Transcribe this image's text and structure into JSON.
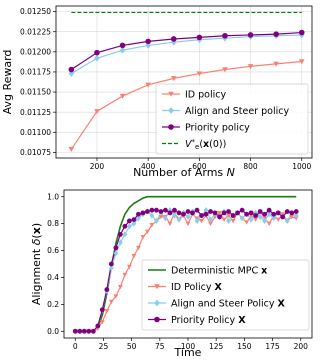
{
  "chart_data": [
    {
      "type": "line",
      "xlabel": "Number of Arms N",
      "ylabel": "Avg Reward",
      "x_ticks": [
        "200",
        "400",
        "600",
        "800",
        "1000"
      ],
      "y_ticks": [
        "0.01075",
        "0.01100",
        "0.01125",
        "0.01150",
        "0.01175",
        "0.01200",
        "0.01225",
        "0.01250"
      ],
      "xlim": [
        40,
        1040
      ],
      "ylim": [
        0.01068,
        0.01257
      ],
      "grid": true,
      "legend_position": "lower right",
      "x": [
        100,
        200,
        300,
        400,
        500,
        600,
        700,
        800,
        900,
        1000
      ],
      "series": [
        {
          "name": "ID policy",
          "color": "#fa8072",
          "marker": "triangle-down",
          "values": [
            0.01079,
            0.01126,
            0.01145,
            0.01159,
            0.01167,
            0.01173,
            0.01178,
            0.01182,
            0.01185,
            0.01188
          ]
        },
        {
          "name": "Align and Steer policy",
          "color": "#87ceeb",
          "marker": "diamond",
          "values": [
            0.01173,
            0.01192,
            0.01202,
            0.01208,
            0.01212,
            0.01215,
            0.01217,
            0.01219,
            0.0122,
            0.01221
          ]
        },
        {
          "name": "Priority policy",
          "color": "#800080",
          "marker": "circle",
          "values": [
            0.01178,
            0.01199,
            0.01208,
            0.01213,
            0.01216,
            0.01218,
            0.0122,
            0.01221,
            0.01222,
            0.01224
          ]
        },
        {
          "name": "V*_e(x(0))",
          "color": "#008000",
          "dashed": true,
          "values": [
            0.01249,
            0.01249,
            0.01249,
            0.01249,
            0.01249,
            0.01249,
            0.01249,
            0.01249,
            0.01249,
            0.01249
          ]
        }
      ]
    },
    {
      "type": "line",
      "xlabel": "Time",
      "ylabel": "Alignment δ(x)",
      "x_ticks": [
        "0",
        "25",
        "50",
        "75",
        "100",
        "125",
        "150",
        "175",
        "200"
      ],
      "y_ticks": [
        "0.0",
        "0.2",
        "0.4",
        "0.6",
        "0.8",
        "1.0"
      ],
      "xlim": [
        -10,
        210
      ],
      "ylim": [
        -0.05,
        1.05
      ],
      "grid": false,
      "legend_position": "lower right",
      "x": [
        0,
        4,
        8,
        12,
        16,
        20,
        24,
        28,
        32,
        36,
        40,
        44,
        48,
        52,
        56,
        60,
        64,
        68,
        72,
        76,
        80,
        84,
        88,
        92,
        96,
        100,
        104,
        108,
        112,
        116,
        120,
        124,
        128,
        132,
        136,
        140,
        144,
        148,
        152,
        156,
        160,
        164,
        168,
        172,
        176,
        180,
        184,
        188,
        192,
        196
      ],
      "series": [
        {
          "name": "Deterministic MPC",
          "color": "#1a7a1a",
          "marker": "none",
          "values": [
            0,
            0,
            0,
            0,
            0,
            0.03,
            0.12,
            0.28,
            0.48,
            0.65,
            0.78,
            0.87,
            0.92,
            0.95,
            0.97,
            0.99,
            1,
            1,
            1,
            1,
            1,
            1,
            1,
            1,
            1,
            1,
            1,
            1,
            1,
            1,
            1,
            1,
            1,
            1,
            1,
            1,
            1,
            1,
            1,
            1,
            1,
            1,
            1,
            1,
            1,
            1,
            1,
            1,
            1,
            1
          ]
        },
        {
          "name": "ID Policy",
          "color": "#fa8072",
          "marker": "triangle-down",
          "values": [
            0,
            0,
            0,
            0,
            0,
            0.02,
            0.07,
            0.15,
            0.22,
            0.26,
            0.33,
            0.42,
            0.48,
            0.56,
            0.62,
            0.7,
            0.74,
            0.79,
            0.82,
            0.85,
            0.85,
            0.8,
            0.88,
            0.83,
            0.86,
            0.8,
            0.87,
            0.84,
            0.82,
            0.86,
            0.8,
            0.85,
            0.88,
            0.83,
            0.86,
            0.82,
            0.88,
            0.84,
            0.81,
            0.86,
            0.83,
            0.89,
            0.84,
            0.8,
            0.86,
            0.83,
            0.87,
            0.82,
            0.85,
            0.84
          ]
        },
        {
          "name": "Align and Steer Policy",
          "color": "#87ceeb",
          "marker": "diamond",
          "values": [
            0,
            0,
            0,
            0,
            0,
            0.04,
            0.16,
            0.3,
            0.47,
            0.58,
            0.66,
            0.72,
            0.78,
            0.8,
            0.84,
            0.87,
            0.89,
            0.86,
            0.82,
            0.88,
            0.84,
            0.9,
            0.86,
            0.83,
            0.88,
            0.85,
            0.89,
            0.82,
            0.86,
            0.9,
            0.83,
            0.87,
            0.85,
            0.89,
            0.82,
            0.86,
            0.88,
            0.84,
            0.87,
            0.83,
            0.88,
            0.85,
            0.82,
            0.87,
            0.84,
            0.88,
            0.85,
            0.82,
            0.88,
            0.86
          ]
        },
        {
          "name": "Priority Policy",
          "color": "#800080",
          "marker": "circle",
          "values": [
            0,
            0,
            0,
            0,
            0,
            0.04,
            0.16,
            0.31,
            0.5,
            0.62,
            0.72,
            0.78,
            0.82,
            0.83,
            0.87,
            0.88,
            0.89,
            0.9,
            0.9,
            0.89,
            0.9,
            0.88,
            0.9,
            0.88,
            0.87,
            0.89,
            0.88,
            0.9,
            0.86,
            0.87,
            0.89,
            0.88,
            0.85,
            0.88,
            0.89,
            0.86,
            0.88,
            0.9,
            0.87,
            0.88,
            0.86,
            0.89,
            0.87,
            0.9,
            0.87,
            0.88,
            0.85,
            0.89,
            0.88,
            0.89
          ]
        }
      ]
    }
  ]
}
